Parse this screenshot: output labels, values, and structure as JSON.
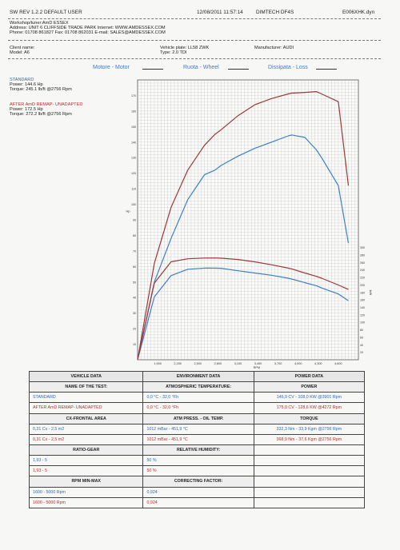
{
  "header": {
    "sw": "SW REV 1.2.2  DEFAULT USER",
    "datetime": "12/08/2011 11:57:14",
    "device": "DIMTECH DF4S",
    "file": "E006XHK.dyn"
  },
  "workshop": {
    "line1": "Workshop/tuner:AmD ESSEX",
    "line2": "Address: UNIT 6 CLIFFSIDE TRADE PARK Internet: WWW.AMDESSEX.COM",
    "line3": "Phone: 01708 861827 Fax: 01708 862031 E-mail: SALES@AMDESSEX.COM"
  },
  "client": {
    "name_label": "Client name:",
    "model": "Model: A6",
    "plate": "Vehicle plate: LL58 ZWK",
    "type": "Type: 2.0 TDI",
    "manufacturer": "Manufacturer: AUDI"
  },
  "legend": {
    "motor": "Motore - Motor",
    "wheel": "Ruota - Wheel",
    "loss": "Dissipata - Loss"
  },
  "runs": {
    "standard": {
      "title": "STANDARD",
      "power": "Power: 144.6 Hp",
      "torque": "Torque: 245.1 lb/ft @2756 Rpm"
    },
    "remap": {
      "title": "AFTER AmD REMAP- UNADAPTED",
      "power": "Power: 172.5 Hp",
      "torque": "Torque: 272.2 lb/ft @2756 Rpm"
    }
  },
  "chart_data": {
    "type": "line",
    "x": [
      1600,
      1850,
      2100,
      2350,
      2600,
      2756,
      2850,
      3100,
      3350,
      3600,
      3850,
      3901,
      4100,
      4272,
      4350,
      4600,
      4750
    ],
    "xlim": [
      1600,
      4900
    ],
    "series": [
      {
        "name": "STANDARD",
        "kind": "power",
        "values": [
          0,
          50,
          78,
          103,
          119,
          122,
          125,
          131,
          136,
          140,
          144,
          144.6,
          143,
          135,
          130,
          112,
          75
        ]
      },
      {
        "name": "AFTER AmD REMAP- UNADAPTED",
        "kind": "power",
        "values": [
          0,
          62,
          98,
          122,
          138,
          145,
          148,
          157,
          164,
          168,
          171,
          171.5,
          172,
          172.5,
          171,
          166,
          112
        ]
      },
      {
        "name": "STANDARD",
        "kind": "torque",
        "values": [
          0,
          168,
          225,
          242,
          245,
          245.1,
          244.5,
          238,
          232,
          226,
          218,
          216,
          206,
          198,
          192,
          176,
          158
        ]
      },
      {
        "name": "AFTER AmD REMAP- UNADAPTED",
        "kind": "torque",
        "values": [
          0,
          205,
          262,
          270,
          272,
          272.2,
          271.5,
          268,
          262,
          254,
          245,
          243,
          232,
          223,
          218,
          200,
          188
        ]
      }
    ],
    "power_ylim": [
      0,
      180
    ],
    "torque_ylim": [
      0,
      310
    ],
    "x_ticks": [
      1900,
      2200,
      2500,
      2800,
      3100,
      3400,
      3700,
      4000,
      4300,
      4600
    ],
    "y_left_label": "Hp",
    "y_right_label": "lb/ft",
    "xlabel": "RPM",
    "grid": true
  },
  "table": {
    "head": {
      "vehicle": "VEHICLE DATA",
      "env": "ENVIRONMENT DATA",
      "power": "POWER DATA"
    },
    "r1": {
      "a": "NAME OF THE TEST:",
      "b": "ATMOSPHERIC TEMPERATURE:",
      "c": "POWER"
    },
    "r2": {
      "a": "STANDARD",
      "b": "0,0 °C - 32,0 °Fh",
      "c": "146,9 CV - 108,0 KW @3901 Rpm"
    },
    "r3": {
      "a": "AFTER AmD REMAP- UNADAPTED",
      "b": "0,0 °C - 32,0 °Fh",
      "c": "175,0 CV - 128,6 KW @4272 Rpm"
    },
    "r4": {
      "a": "CX-FRONTAL AREA",
      "b": "ATM PRESS. - OIL TEMP.",
      "c": "TORQUE"
    },
    "r5": {
      "a": "0,31 Cx - 2,5 m2",
      "b": "1012 mBar - 451,9 °C",
      "c": "332,3 Nm - 33,9 Kgm @2756 Rpm"
    },
    "r6": {
      "a": "0,31 Cx - 2,5 m2",
      "b": "1012 mBar - 451,9 °C",
      "c": "368,9 Nm - 37,6 Kgm @2756 Rpm"
    },
    "r7": {
      "a": "RATIO-GEAR",
      "b": "RELATIVE HUMIDITY:",
      "c": ""
    },
    "r8": {
      "a": "1,93 - 5",
      "b": "50 %",
      "c": ""
    },
    "r9": {
      "a": "1,93 - 5",
      "b": "50 %",
      "c": ""
    },
    "r10": {
      "a": "RPM MIN-MAX",
      "b": "CORRECTING FACTOR:",
      "c": ""
    },
    "r11": {
      "a": "1600 - 5000 Rpm",
      "b": "0,924",
      "c": ""
    },
    "r12": {
      "a": "1600 - 5000 Rpm",
      "b": "0,924",
      "c": ""
    }
  },
  "colors": {
    "standard": "#3f7fc4",
    "remap": "#9a3a3a",
    "grid": "#b8b8b8"
  }
}
